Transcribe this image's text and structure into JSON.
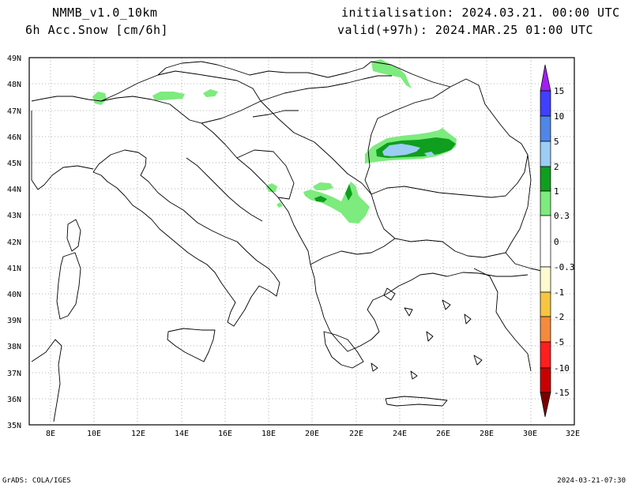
{
  "header": {
    "model": "NMMB_v1.0_10km",
    "variable": "6h Acc.Snow [cm/6h]",
    "init": "initialisation: 2024.03.21.  00:00 UTC",
    "valid": "valid(+97h): 2024.MAR.25 01:00 UTC"
  },
  "footer": {
    "credit": "GrADS: COLA/IGES",
    "timestamp": "2024-03-21-07:30"
  },
  "axes": {
    "lon_labels": [
      "8E",
      "10E",
      "12E",
      "14E",
      "16E",
      "18E",
      "20E",
      "22E",
      "24E",
      "26E",
      "28E",
      "30E",
      "32E"
    ],
    "lat_labels": [
      "49N",
      "48N",
      "47N",
      "46N",
      "45N",
      "44N",
      "43N",
      "42N",
      "41N",
      "40N",
      "39N",
      "38N",
      "37N",
      "36N",
      "35N"
    ]
  },
  "colorbar": {
    "labels": [
      "15",
      "10",
      "5",
      "2",
      "1",
      "0.3",
      "0",
      "-0.3",
      "-1",
      "-2",
      "-5",
      "-10",
      "-15"
    ],
    "colors": {
      "top_tri": "#a020f0",
      "c15": "#3f3fff",
      "c10": "#4f86e8",
      "c5": "#9bcdf5",
      "c2": "#0f9e1e",
      "c1": "#7deb7d",
      "c0": "#ffffff",
      "n03": "#fffad0",
      "n1": "#f6c640",
      "n2": "#f58a3c",
      "n5": "#ff1e1e",
      "n10": "#c80000",
      "bot_tri": "#7a0000"
    }
  }
}
